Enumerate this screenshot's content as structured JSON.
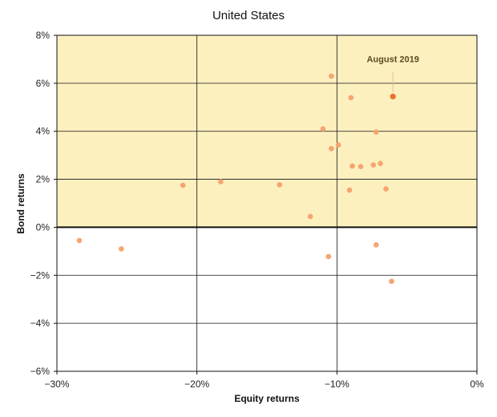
{
  "chart_data": {
    "type": "scatter",
    "title": "United States",
    "xlabel": "Equity returns",
    "ylabel": "Bond returns",
    "xlim": [
      -30,
      0
    ],
    "ylim": [
      -6,
      8
    ],
    "x_ticks": [
      -30,
      -20,
      -10,
      0
    ],
    "y_ticks": [
      -6,
      -4,
      -2,
      0,
      2,
      4,
      6,
      8
    ],
    "x_tick_labels": [
      "−30%",
      "−20%",
      "−10%",
      "0%"
    ],
    "y_tick_labels": [
      "−6%",
      "−4%",
      "−2%",
      "0%",
      "2%",
      "4%",
      "6%",
      "8%"
    ],
    "grid": true,
    "shaded_region": {
      "y_from": 0,
      "y_to": 8,
      "color": "#fdf0bf"
    },
    "colors": {
      "point": "#f7a470",
      "highlight": "#e8712a",
      "annotation_line": "#e0c48a"
    },
    "points": [
      {
        "x": -28.4,
        "y": -0.55
      },
      {
        "x": -25.4,
        "y": -0.9
      },
      {
        "x": -21.0,
        "y": 1.75
      },
      {
        "x": -18.3,
        "y": 1.9
      },
      {
        "x": -14.1,
        "y": 1.77
      },
      {
        "x": -11.9,
        "y": 0.45
      },
      {
        "x": -11.0,
        "y": 4.1
      },
      {
        "x": -10.6,
        "y": -1.22
      },
      {
        "x": -10.4,
        "y": 6.3
      },
      {
        "x": -10.4,
        "y": 3.28
      },
      {
        "x": -9.9,
        "y": 3.43
      },
      {
        "x": -9.0,
        "y": 5.4
      },
      {
        "x": -8.9,
        "y": 2.55
      },
      {
        "x": -9.1,
        "y": 1.55
      },
      {
        "x": -8.3,
        "y": 2.53
      },
      {
        "x": -7.4,
        "y": 2.6
      },
      {
        "x": -7.2,
        "y": 3.97
      },
      {
        "x": -7.2,
        "y": -0.73
      },
      {
        "x": -6.9,
        "y": 2.66
      },
      {
        "x": -6.5,
        "y": 1.6
      },
      {
        "x": -6.1,
        "y": -2.25
      }
    ],
    "highlight": {
      "x": -6.0,
      "y": 5.45,
      "label": "August 2019"
    }
  }
}
